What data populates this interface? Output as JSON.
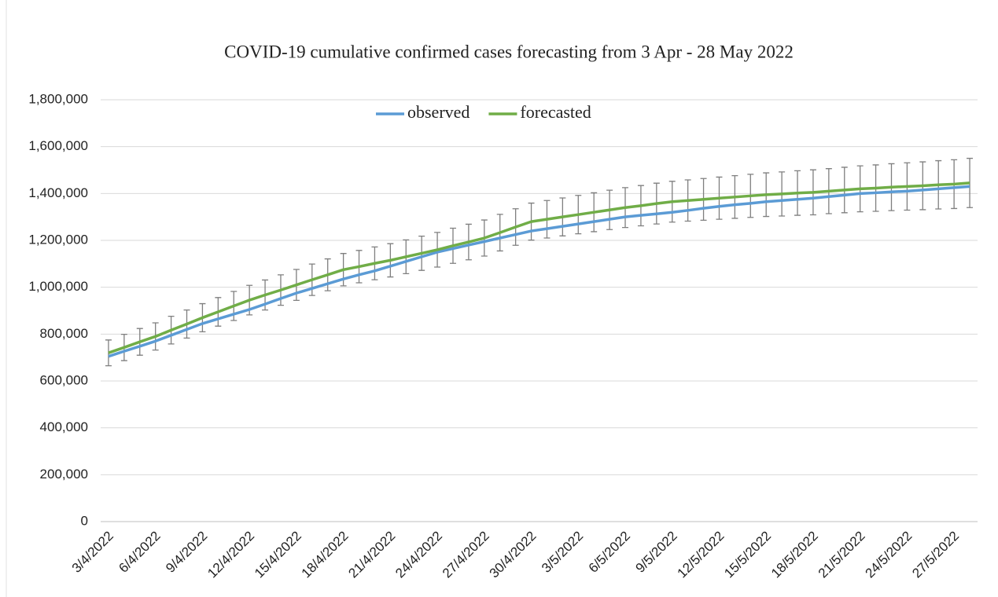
{
  "chart_data": {
    "type": "line",
    "title": "COVID-19 cumulative confirmed cases forecasting from 3 Apr - 28 May 2022",
    "categories": [
      "3/4/2022",
      null,
      null,
      "6/4/2022",
      null,
      null,
      "9/4/2022",
      null,
      null,
      "12/4/2022",
      null,
      null,
      "15/4/2022",
      null,
      null,
      "18/4/2022",
      null,
      null,
      "21/4/2022",
      null,
      null,
      "24/4/2022",
      null,
      null,
      "27/4/2022",
      null,
      null,
      "30/4/2022",
      null,
      null,
      "3/5/2022",
      null,
      null,
      "6/5/2022",
      null,
      null,
      "9/5/2022",
      null,
      null,
      "12/5/2022",
      null,
      null,
      "15/5/2022",
      null,
      null,
      "18/5/2022",
      null,
      null,
      "21/5/2022",
      null,
      null,
      "24/5/2022",
      null,
      null,
      "27/5/2022",
      null
    ],
    "series": [
      {
        "name": "observed",
        "color": "#5b9bd5",
        "values": [
          705000,
          727000,
          748000,
          770000,
          795000,
          820000,
          845000,
          865000,
          885000,
          905000,
          928000,
          952000,
          975000,
          995000,
          1015000,
          1035000,
          1053000,
          1070000,
          1090000,
          1110000,
          1130000,
          1150000,
          1165000,
          1180000,
          1195000,
          1210000,
          1225000,
          1240000,
          1250000,
          1260000,
          1270000,
          1280000,
          1290000,
          1300000,
          1307000,
          1313000,
          1320000,
          1328000,
          1337000,
          1345000,
          1352000,
          1358000,
          1365000,
          1370000,
          1375000,
          1380000,
          1387000,
          1393000,
          1400000,
          1403000,
          1407000,
          1410000,
          1415000,
          1420000,
          1425000,
          1430000
        ]
      },
      {
        "name": "forecasted",
        "color": "#70ad47",
        "error_color": "#7f7f7f",
        "values": [
          720000,
          743000,
          767000,
          790000,
          817000,
          843000,
          870000,
          895000,
          920000,
          945000,
          967000,
          988000,
          1010000,
          1032000,
          1053000,
          1075000,
          1088000,
          1102000,
          1115000,
          1130000,
          1145000,
          1160000,
          1177000,
          1193000,
          1210000,
          1233000,
          1257000,
          1280000,
          1290000,
          1300000,
          1310000,
          1320000,
          1330000,
          1340000,
          1348000,
          1357000,
          1365000,
          1370000,
          1375000,
          1380000,
          1385000,
          1390000,
          1395000,
          1398000,
          1402000,
          1405000,
          1410000,
          1415000,
          1420000,
          1423000,
          1427000,
          1430000,
          1433000,
          1437000,
          1440000,
          1445000
        ],
        "errors": [
          55000,
          56000,
          57000,
          58000,
          59000,
          60000,
          60000,
          61000,
          62000,
          63000,
          64000,
          65000,
          66000,
          67000,
          68000,
          69000,
          69000,
          70000,
          71000,
          72000,
          73000,
          74000,
          75000,
          76000,
          77000,
          78000,
          78000,
          79000,
          80000,
          81000,
          82000,
          83000,
          84000,
          85000,
          86000,
          87000,
          87000,
          88000,
          89000,
          90000,
          91000,
          92000,
          93000,
          94000,
          95000,
          96000,
          96000,
          97000,
          98000,
          99000,
          100000,
          101000,
          102000,
          103000,
          104000,
          105000
        ]
      }
    ],
    "ylim": [
      0,
      1800000
    ],
    "yticks": [
      0,
      {
        "value": 200000,
        "label": "200,000"
      },
      {
        "value": 400000,
        "label": "400,000"
      },
      {
        "value": 600000,
        "label": "600,000"
      },
      {
        "value": 800000,
        "label": "800,000"
      },
      {
        "value": 1000000,
        "label": "1,000,000"
      },
      {
        "value": 1200000,
        "label": "1,200,000"
      },
      {
        "value": 1400000,
        "label": "1,400,000"
      },
      {
        "value": 1600000,
        "label": "1,600,000"
      },
      {
        "value": 1800000,
        "label": "1,800,000"
      }
    ],
    "grid": true,
    "legend": "top"
  }
}
